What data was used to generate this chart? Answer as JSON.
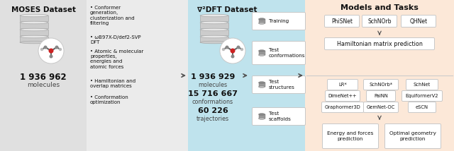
{
  "moses_title": "MOSES Dataset",
  "moses_count": "1 936 962",
  "moses_label": "molecules",
  "bullets": [
    "Conformer\ngeneration,\nclusterization and\nfiltering",
    "ωB97X-D/def2-SVP\nDFT",
    "Atomic & molecular\nproperties,\nenergies and\natomic forces",
    "Hamiltonian and\noverlap matrices",
    "Conformation\noptimization"
  ],
  "nabla_title": "∇²DFT Dataset",
  "nabla_mol": "1 936 929",
  "nabla_mol_label": "molecules",
  "nabla_conf": "15 716 667",
  "nabla_conf_label": "conformations",
  "nabla_traj": "60 226",
  "nabla_traj_label": "trajectories",
  "test_items": [
    "Training",
    "Test\nconformations",
    "Test\nstructures",
    "Test\nscaffolds"
  ],
  "models_title": "Models and Tasks",
  "top_models": [
    "PhiSNet",
    "SchNOrb",
    "QHNet"
  ],
  "top_task": "Hamiltonian matrix prediction",
  "bottom_models_row1": [
    "LR*",
    "SchNOrb*",
    "SchNet"
  ],
  "bottom_models_row2": [
    "DimeNet++",
    "PaiNN",
    "EquiformerV2"
  ],
  "bottom_models_row3": [
    "Graphormer3D",
    "GemNet-OC",
    "eSCN"
  ],
  "bottom_tasks": [
    "Energy and forces\nprediction",
    "Optimal geometry\nprediction"
  ],
  "sec1_bg": "#e0e0e0",
  "sec2_bg": "#ebebeb",
  "sec3_bg": "#bfe3ed",
  "sec5_bg": "#fce8d8",
  "arrow_color": "#555555",
  "box_edge": "#c8c8c8",
  "box_fill": "#ffffff",
  "text_dark": "#111111",
  "text_med": "#444444",
  "div_line": "#cccccc",
  "cyl_body": "#cccccc",
  "cyl_top": "#e8e8e8",
  "cyl_edge": "#aaaaaa"
}
